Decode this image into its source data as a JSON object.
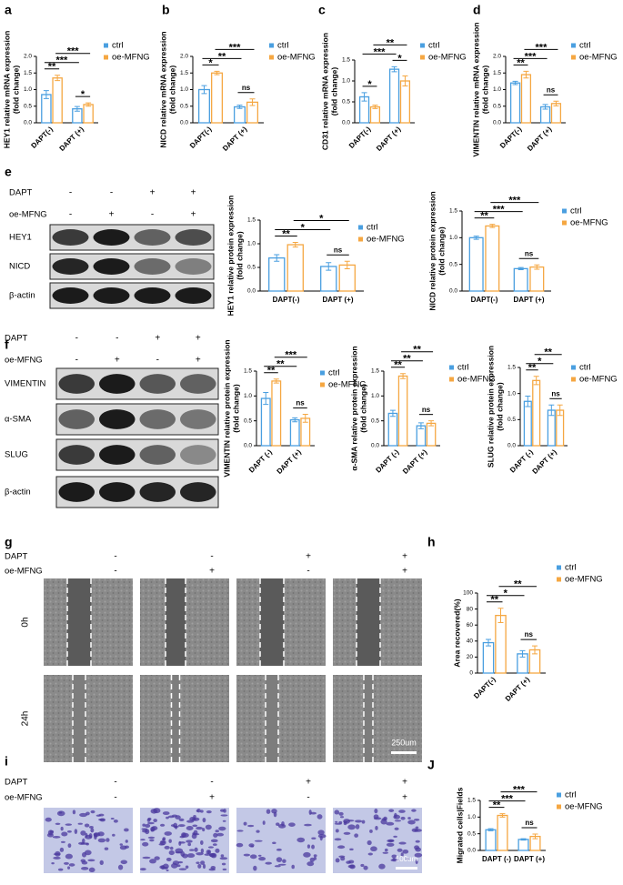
{
  "panel_labels": [
    "a",
    "b",
    "c",
    "d",
    "e",
    "f",
    "g",
    "h",
    "i",
    "J"
  ],
  "chart_data": [
    {
      "type": "bar",
      "ylabel": [
        "HEY1 relative mRNA expression",
        "(fold change)"
      ],
      "categories": [
        "DAPT(-)",
        "DAPT (+)"
      ],
      "series": [
        {
          "name": "ctrl",
          "color": "#4a9fe0",
          "values": [
            0.85,
            0.42
          ],
          "errors": [
            0.12,
            0.07
          ]
        },
        {
          "name": "oe-MFNG",
          "color": "#f5a742",
          "values": [
            1.35,
            0.55
          ],
          "errors": [
            0.08,
            0.05
          ]
        }
      ],
      "ylim": [
        0,
        2
      ],
      "yticks": [
        {
          "value": 0,
          "label": "0.0"
        },
        {
          "value": 0.5,
          "label": "0.5"
        },
        {
          "value": 1,
          "label": "1.0"
        },
        {
          "value": 1.5,
          "label": "1.5"
        },
        {
          "value": 2,
          "label": "2.0"
        }
      ],
      "annotations": [
        "**",
        "*",
        "***",
        "***"
      ]
    },
    {
      "type": "bar",
      "ylabel": [
        "NICD relative mRNA expression",
        "(fold change)"
      ],
      "categories": [
        "DAPT(-)",
        "DAPT (+)"
      ],
      "series": [
        {
          "name": "ctrl",
          "color": "#4a9fe0",
          "values": [
            1.0,
            0.48
          ],
          "errors": [
            0.12,
            0.05
          ]
        },
        {
          "name": "oe-MFNG",
          "color": "#f5a742",
          "values": [
            1.5,
            0.62
          ],
          "errors": [
            0.05,
            0.1
          ]
        }
      ],
      "ylim": [
        0,
        2
      ],
      "yticks": [
        {
          "value": 0,
          "label": "0.0"
        },
        {
          "value": 0.5,
          "label": "0.5"
        },
        {
          "value": 1,
          "label": "1.0"
        },
        {
          "value": 1.5,
          "label": "1.5"
        },
        {
          "value": 2,
          "label": "2.0"
        }
      ],
      "annotations": [
        "*",
        "ns",
        "**",
        "***"
      ]
    },
    {
      "type": "bar",
      "ylabel": [
        "CD31 relative mRNA expression",
        "(fold change)"
      ],
      "categories": [
        "DAPT(-)",
        "DAPT (+)"
      ],
      "series": [
        {
          "name": "ctrl",
          "color": "#4a9fe0",
          "values": [
            0.62,
            1.28
          ],
          "errors": [
            0.1,
            0.06
          ]
        },
        {
          "name": "oe-MFNG",
          "color": "#f5a742",
          "values": [
            0.38,
            1.0
          ],
          "errors": [
            0.04,
            0.12
          ]
        }
      ],
      "ylim": [
        0,
        1.5
      ],
      "yticks": [
        {
          "value": 0,
          "label": "0.0"
        },
        {
          "value": 0.5,
          "label": "0.5"
        },
        {
          "value": 1,
          "label": "1.0"
        },
        {
          "value": 1.5,
          "label": "1.5"
        }
      ],
      "annotations": [
        "*",
        "*",
        "***",
        "**"
      ]
    },
    {
      "type": "bar",
      "ylabel": [
        "VIMENTIN relative mRNA expression",
        "(fold change)"
      ],
      "categories": [
        "DAPT(-)",
        "DAPT (+)"
      ],
      "series": [
        {
          "name": "ctrl",
          "color": "#4a9fe0",
          "values": [
            1.2,
            0.48
          ],
          "errors": [
            0.05,
            0.07
          ]
        },
        {
          "name": "oe-MFNG",
          "color": "#f5a742",
          "values": [
            1.45,
            0.58
          ],
          "errors": [
            0.1,
            0.07
          ]
        }
      ],
      "ylim": [
        0,
        2
      ],
      "yticks": [
        {
          "value": 0,
          "label": "0.0"
        },
        {
          "value": 0.5,
          "label": "0.5"
        },
        {
          "value": 1,
          "label": "1.0"
        },
        {
          "value": 1.5,
          "label": "1.5"
        },
        {
          "value": 2,
          "label": "2.0"
        }
      ],
      "annotations": [
        "**",
        "ns",
        "***",
        "***"
      ]
    },
    {
      "type": "bar",
      "ylabel": [
        "HEY1 relative protein expression",
        "(fold change)"
      ],
      "categories": [
        "DAPT(-)",
        "DAPT (+)"
      ],
      "series": [
        {
          "name": "ctrl",
          "color": "#4a9fe0",
          "values": [
            0.7,
            0.52
          ],
          "errors": [
            0.07,
            0.08
          ]
        },
        {
          "name": "oe-MFNG",
          "color": "#f5a742",
          "values": [
            0.98,
            0.55
          ],
          "errors": [
            0.05,
            0.08
          ]
        }
      ],
      "ylim": [
        0,
        1.5
      ],
      "yticks": [
        {
          "value": 0,
          "label": "0.0"
        },
        {
          "value": 0.5,
          "label": "0.5"
        },
        {
          "value": 1,
          "label": "1.0"
        },
        {
          "value": 1.5,
          "label": "1.5"
        }
      ],
      "annotations": [
        "**",
        "ns",
        "*",
        "*"
      ]
    },
    {
      "type": "bar",
      "ylabel": [
        "NICD relative protein expression",
        "(fold change)"
      ],
      "categories": [
        "DAPT(-)",
        "DAPT (+)"
      ],
      "series": [
        {
          "name": "ctrl",
          "color": "#4a9fe0",
          "values": [
            1.0,
            0.42
          ],
          "errors": [
            0.03,
            0.02
          ]
        },
        {
          "name": "oe-MFNG",
          "color": "#f5a742",
          "values": [
            1.22,
            0.45
          ],
          "errors": [
            0.03,
            0.04
          ]
        }
      ],
      "ylim": [
        0,
        1.5
      ],
      "yticks": [
        {
          "value": 0,
          "label": "0.0"
        },
        {
          "value": 0.5,
          "label": "0.5"
        },
        {
          "value": 1,
          "label": "1.0"
        },
        {
          "value": 1.5,
          "label": "1.5"
        }
      ],
      "annotations": [
        "**",
        "ns",
        "***",
        "***"
      ]
    },
    {
      "type": "bar",
      "ylabel": [
        "VIMENTIN relative protein expression",
        "(fold change)"
      ],
      "categories": [
        "DAPT (-)",
        "DAPT (+)"
      ],
      "series": [
        {
          "name": "ctrl",
          "color": "#4a9fe0",
          "values": [
            0.95,
            0.52
          ],
          "errors": [
            0.12,
            0.04
          ]
        },
        {
          "name": "oe-MFNG",
          "color": "#f5a742",
          "values": [
            1.3,
            0.55
          ],
          "errors": [
            0.04,
            0.08
          ]
        }
      ],
      "ylim": [
        0,
        1.5
      ],
      "yticks": [
        {
          "value": 0,
          "label": "0.0"
        },
        {
          "value": 0.5,
          "label": "0.5"
        },
        {
          "value": 1,
          "label": "1.0"
        },
        {
          "value": 1.5,
          "label": "1.5"
        }
      ],
      "annotations": [
        "**",
        "ns",
        "**",
        "***"
      ]
    },
    {
      "type": "bar",
      "ylabel": [
        "α-SMA relative protein expression",
        "(fold change)"
      ],
      "categories": [
        "DAPT (-)",
        "DAPT (+)"
      ],
      "series": [
        {
          "name": "ctrl",
          "color": "#4a9fe0",
          "values": [
            0.65,
            0.4
          ],
          "errors": [
            0.06,
            0.06
          ]
        },
        {
          "name": "oe-MFNG",
          "color": "#f5a742",
          "values": [
            1.4,
            0.45
          ],
          "errors": [
            0.05,
            0.05
          ]
        }
      ],
      "ylim": [
        0,
        1.5
      ],
      "yticks": [
        {
          "value": 0,
          "label": "0.0"
        },
        {
          "value": 0.5,
          "label": "0.5"
        },
        {
          "value": 1,
          "label": "1.0"
        },
        {
          "value": 1.5,
          "label": "1.5"
        }
      ],
      "annotations": [
        "**",
        "ns",
        "**",
        "**"
      ]
    },
    {
      "type": "bar",
      "ylabel": [
        "SLUG relative protein expression",
        "(fold change)"
      ],
      "categories": [
        "DAPT (-)",
        "DAPT (+)"
      ],
      "series": [
        {
          "name": "ctrl",
          "color": "#4a9fe0",
          "values": [
            0.85,
            0.68
          ],
          "errors": [
            0.1,
            0.1
          ]
        },
        {
          "name": "oe-MFNG",
          "color": "#f5a742",
          "values": [
            1.25,
            0.68
          ],
          "errors": [
            0.08,
            0.1
          ]
        }
      ],
      "ylim": [
        0,
        1.5
      ],
      "yticks": [
        {
          "value": 0,
          "label": "0.0"
        },
        {
          "value": 0.5,
          "label": "0.5"
        },
        {
          "value": 1,
          "label": "1.0"
        },
        {
          "value": 1.5,
          "label": "1.5"
        }
      ],
      "annotations": [
        "**",
        "ns",
        "*",
        "**"
      ]
    },
    {
      "type": "bar",
      "ylabel": [
        "Area recovered(%)"
      ],
      "categories": [
        "DAPT(-)",
        "DAPT (+)"
      ],
      "series": [
        {
          "name": "ctrl",
          "color": "#4a9fe0",
          "values": [
            38,
            24
          ],
          "errors": [
            4,
            4
          ]
        },
        {
          "name": "oe-MFNG",
          "color": "#f5a742",
          "values": [
            72,
            29
          ],
          "errors": [
            9,
            5
          ]
        }
      ],
      "ylim": [
        0,
        100
      ],
      "yticks": [
        0,
        20,
        40,
        60,
        80,
        100
      ],
      "annotations": [
        "**",
        "ns",
        "*",
        "**"
      ]
    },
    {
      "type": "bar",
      "ylabel": [
        "Migrated cells|Fields"
      ],
      "categories": [
        "DAPT (-)",
        "DAPT (+)"
      ],
      "series": [
        {
          "name": "ctrl",
          "color": "#4a9fe0",
          "values": [
            0.62,
            0.33
          ],
          "errors": [
            0.03,
            0.02
          ]
        },
        {
          "name": "oe-MFNG",
          "color": "#f5a742",
          "values": [
            1.05,
            0.42
          ],
          "errors": [
            0.05,
            0.07
          ]
        }
      ],
      "ylim": [
        0,
        1.5
      ],
      "yticks": [
        {
          "value": 0,
          "label": "0.0"
        },
        {
          "value": 0.5,
          "label": "0.5"
        },
        {
          "value": 1,
          "label": "1.0"
        },
        {
          "value": 1.5,
          "label": "1.5"
        }
      ],
      "annotations": [
        "**",
        "ns",
        "***",
        "***"
      ]
    }
  ],
  "blot_e": {
    "conditions": [
      {
        "label": "DAPT",
        "marks": [
          "-",
          "-",
          "+",
          "+"
        ]
      },
      {
        "label": "oe-MFNG",
        "marks": [
          "-",
          "+",
          "-",
          "+"
        ]
      }
    ],
    "rows": [
      "HEY1",
      "NICD",
      "β-actin"
    ]
  },
  "blot_f": {
    "conditions": [
      {
        "label": "DAPT",
        "marks": [
          "-",
          "-",
          "+",
          "+"
        ]
      },
      {
        "label": "oe-MFNG",
        "marks": [
          "-",
          "+",
          "-",
          "+"
        ]
      }
    ],
    "rows": [
      "VIMENTIN",
      "α-SMA",
      "SLUG",
      "β-actin"
    ]
  },
  "scratch_g": {
    "conditions": [
      {
        "label": "DAPT",
        "marks": [
          "-",
          "-",
          "+",
          "+"
        ]
      },
      {
        "label": "oe-MFNG",
        "marks": [
          "-",
          "+",
          "-",
          "+"
        ]
      }
    ],
    "rows": [
      "0h",
      "24h"
    ],
    "scale_bar": "250um"
  },
  "transwell_i": {
    "conditions": [
      {
        "label": "DAPT",
        "marks": [
          "-",
          "-",
          "+",
          "+"
        ]
      },
      {
        "label": "oe-MFNG",
        "marks": [
          "-",
          "+",
          "-",
          "+"
        ]
      }
    ],
    "scale_bar": "100um"
  }
}
